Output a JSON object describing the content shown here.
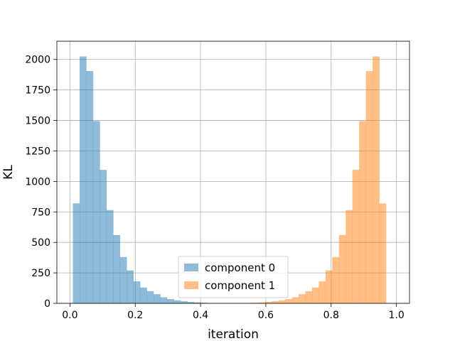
{
  "chart_data": {
    "type": "bar",
    "subtype": "overlapping-histogram",
    "title": "",
    "xlabel": "iteration",
    "ylabel": "KL",
    "xlim": [
      -0.04,
      1.04
    ],
    "ylim": [
      0,
      2150
    ],
    "x_ticks": [
      0.0,
      0.2,
      0.4,
      0.6,
      0.8,
      1.0
    ],
    "x_tick_labels": [
      "0.0",
      "0.2",
      "0.4",
      "0.6",
      "0.8",
      "1.0"
    ],
    "y_ticks": [
      0,
      250,
      500,
      750,
      1000,
      1250,
      1500,
      1750,
      2000
    ],
    "y_tick_labels": [
      "0",
      "250",
      "500",
      "750",
      "1000",
      "1250",
      "1500",
      "1750",
      "2000"
    ],
    "grid": true,
    "legend_position": "lower-center",
    "bin_width": 0.0206,
    "series": [
      {
        "name": "component 0",
        "color": "#1f77b4",
        "alpha": 0.5,
        "bin_start": 0.009,
        "values": [
          820,
          2025,
          1905,
          1495,
          1095,
          765,
          560,
          380,
          270,
          180,
          130,
          100,
          75,
          50,
          35,
          25,
          18,
          12,
          8,
          5,
          3,
          2,
          1
        ]
      },
      {
        "name": "component 1",
        "color": "#ff7f0e",
        "alpha": 0.5,
        "bin_start": 0.0,
        "values": [
          0,
          0,
          0,
          0,
          0,
          0,
          0,
          0,
          0,
          0,
          0,
          0,
          0,
          0,
          0,
          0,
          0,
          0,
          0,
          0,
          0,
          0,
          0,
          0,
          1,
          2,
          3,
          5,
          8,
          12,
          18,
          25,
          35,
          50,
          75,
          100,
          130,
          180,
          270,
          380,
          560,
          765,
          1095,
          1495,
          1905,
          2025,
          820
        ]
      }
    ]
  }
}
